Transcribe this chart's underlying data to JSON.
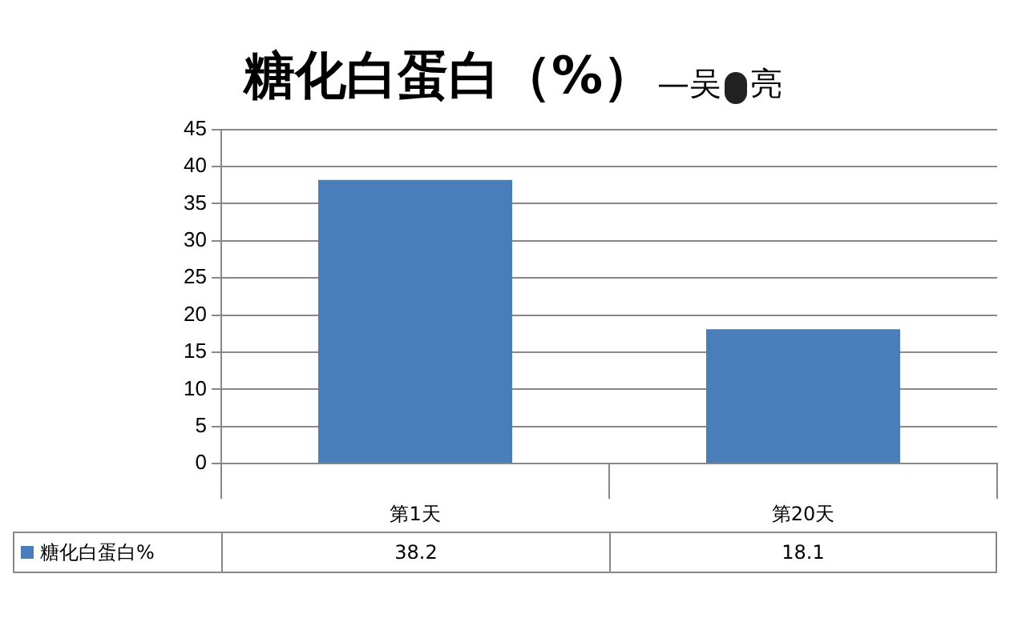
{
  "chart_data": {
    "type": "bar",
    "title": "糖化白蛋白（%）",
    "annotations": [
      "—吴",
      "亮"
    ],
    "categories": [
      "第1天",
      "第20天"
    ],
    "series": [
      {
        "name": "糖化白蛋白%",
        "color": "#4a7ebb",
        "values": [
          38.2,
          18.1
        ]
      }
    ],
    "ylim": [
      0,
      45
    ],
    "yticks": [
      0,
      5,
      10,
      15,
      20,
      25,
      30,
      35,
      40,
      45
    ],
    "grid": "y",
    "legend": "bottom",
    "data_labels": true
  }
}
